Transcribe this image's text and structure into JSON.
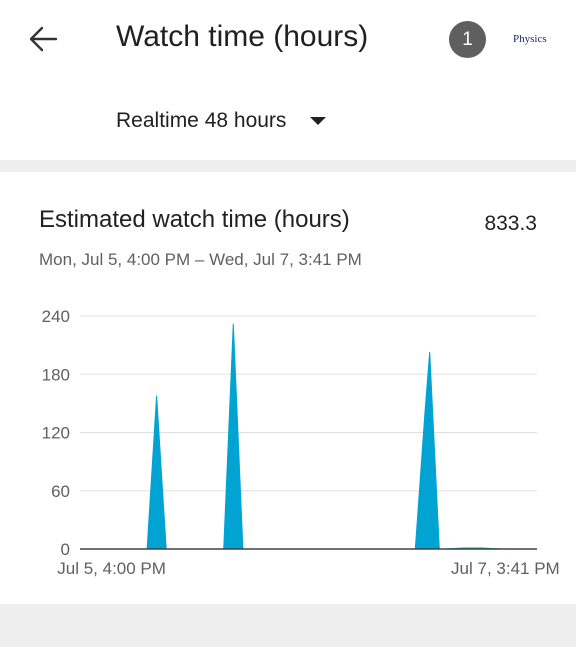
{
  "header": {
    "title": "Watch time (hours)",
    "notification_count": "1",
    "channel_logo_text": "Physics",
    "back_icon": "arrow-left-icon"
  },
  "range_select": {
    "selected": "Realtime 48 hours",
    "caret_icon": "caret-down-icon"
  },
  "card": {
    "title": "Estimated watch time (hours)",
    "total": "833.3",
    "date_range": "Mon, Jul 5, 4:00 PM – Wed, Jul 7, 3:41 PM"
  },
  "colors": {
    "accent": "#00a3d1",
    "badge": "#5f5f5f",
    "band": "#eeeeee"
  },
  "chart_data": {
    "type": "area",
    "x_range_hours": [
      0,
      47.7
    ],
    "x_tick_labels": [
      "Jul 5, 4:00 PM",
      "Jul 7, 3:41 PM"
    ],
    "x_tick_hours": [
      3.3,
      44.4
    ],
    "y_ticks": [
      0,
      60,
      120,
      180,
      240
    ],
    "ylim": [
      0,
      240
    ],
    "grid": true,
    "series": [
      {
        "points": [
          [
            0,
            0
          ],
          [
            2,
            0
          ],
          [
            4,
            0
          ],
          [
            6,
            0
          ],
          [
            7,
            0
          ],
          [
            8,
            158
          ],
          [
            9,
            0
          ],
          [
            10,
            0
          ],
          [
            12,
            0
          ],
          [
            14,
            0
          ],
          [
            15,
            0
          ],
          [
            16,
            232
          ],
          [
            17,
            0
          ],
          [
            18,
            0
          ],
          [
            20,
            0
          ],
          [
            22,
            0
          ],
          [
            24,
            0
          ],
          [
            26,
            0
          ],
          [
            28,
            0
          ],
          [
            30,
            0
          ],
          [
            32,
            0
          ],
          [
            34,
            0
          ],
          [
            35,
            0
          ],
          [
            36,
            140
          ],
          [
            36.5,
            203
          ],
          [
            37.5,
            0
          ],
          [
            38,
            0
          ],
          [
            40,
            1
          ],
          [
            42,
            1
          ],
          [
            44,
            0
          ]
        ]
      }
    ]
  }
}
